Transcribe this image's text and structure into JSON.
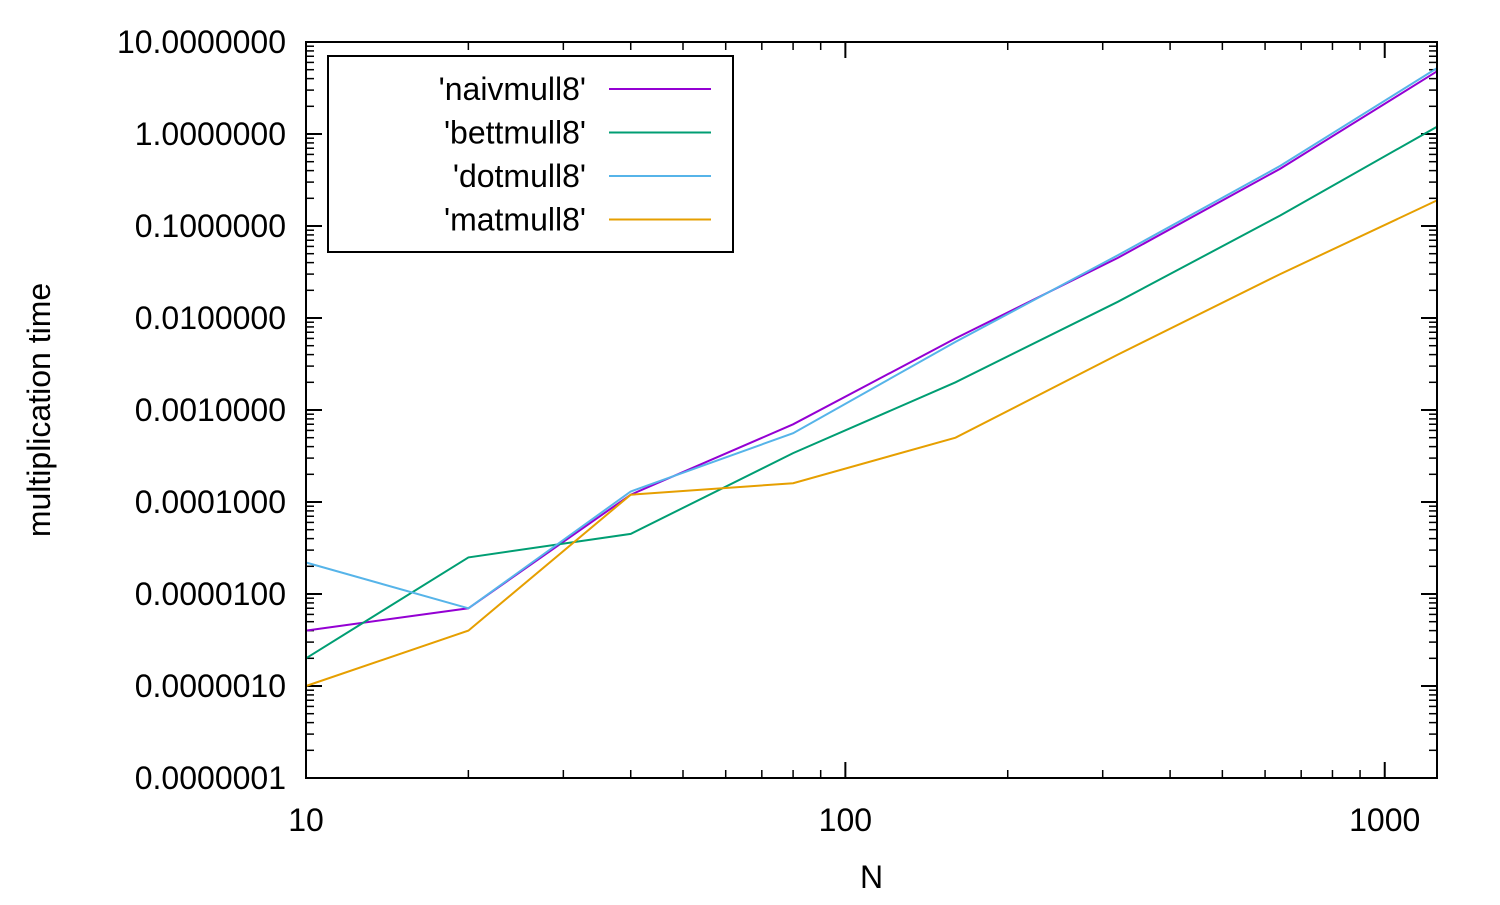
{
  "chart_data": {
    "type": "line",
    "title": "",
    "xlabel": "N",
    "ylabel": "multiplication time",
    "xscale": "log",
    "yscale": "log",
    "xlim": [
      10,
      1250
    ],
    "ylim": [
      1e-07,
      10
    ],
    "grid": false,
    "legend_position": "top-left",
    "x_ticks": [
      {
        "value": 10,
        "label": "10"
      },
      {
        "value": 100,
        "label": "100"
      },
      {
        "value": 1000,
        "label": "1000"
      }
    ],
    "y_ticks": [
      {
        "value": 10,
        "label": "10.0000000"
      },
      {
        "value": 1,
        "label": "1.0000000"
      },
      {
        "value": 0.1,
        "label": "0.1000000"
      },
      {
        "value": 0.01,
        "label": "0.0100000"
      },
      {
        "value": 0.001,
        "label": "0.0010000"
      },
      {
        "value": 0.0001,
        "label": "0.0001000"
      },
      {
        "value": 1e-05,
        "label": "0.0000100"
      },
      {
        "value": 1e-06,
        "label": "0.0000010"
      },
      {
        "value": 1e-07,
        "label": "0.0000001"
      }
    ],
    "x": [
      10,
      20,
      40,
      80,
      160,
      320,
      640,
      1250
    ],
    "series": [
      {
        "name": "'naivmull8'",
        "color": "#9400d3",
        "values": [
          4e-06,
          7e-06,
          0.00012,
          0.0007,
          0.006,
          0.045,
          0.42,
          4.8
        ]
      },
      {
        "name": "'bettmull8'",
        "color": "#009e73",
        "values": [
          2e-06,
          2.5e-05,
          4.5e-05,
          0.00034,
          0.002,
          0.015,
          0.13,
          1.2
        ]
      },
      {
        "name": "'dotmull8'",
        "color": "#56b4e9",
        "values": [
          2.2e-05,
          7e-06,
          0.00013,
          0.00056,
          0.0055,
          0.048,
          0.45,
          5.2
        ]
      },
      {
        "name": "'matmull8'",
        "color": "#e69f00",
        "values": [
          1e-06,
          4e-06,
          0.00012,
          0.00016,
          0.0005,
          0.004,
          0.03,
          0.19
        ]
      }
    ]
  }
}
